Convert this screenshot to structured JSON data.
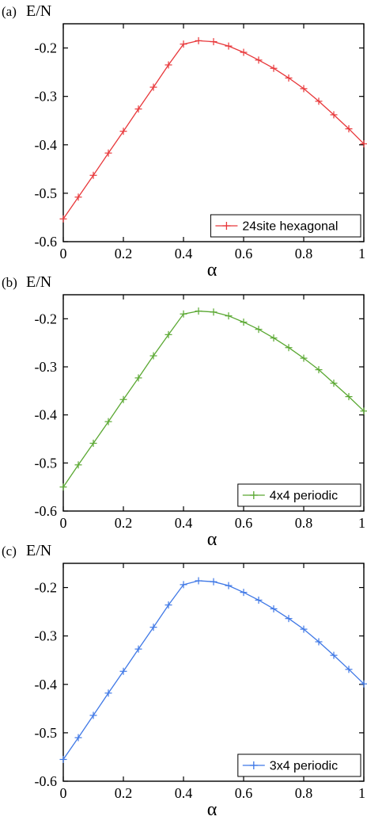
{
  "chart_data": [
    {
      "type": "line",
      "panel_label": "(a)",
      "ylabel": "E/N",
      "xlabel": "α",
      "xlim": [
        0,
        1
      ],
      "ylim": [
        -0.6,
        -0.15
      ],
      "xticks": [
        "0",
        "0.2",
        "0.4",
        "0.6",
        "0.8",
        "1"
      ],
      "yticks": [
        "-0.6",
        "-0.5",
        "-0.4",
        "-0.3",
        "-0.2"
      ],
      "legend_position": "bottom-right",
      "series": [
        {
          "name": "24site hexagonal",
          "color": "#e8373a",
          "marker": "plus",
          "x": [
            0,
            0.05,
            0.1,
            0.15,
            0.2,
            0.25,
            0.3,
            0.35,
            0.4,
            0.45,
            0.5,
            0.55,
            0.6,
            0.65,
            0.7,
            0.75,
            0.8,
            0.85,
            0.9,
            0.95,
            1.0
          ],
          "y": [
            -0.553,
            -0.508,
            -0.463,
            -0.417,
            -0.372,
            -0.326,
            -0.281,
            -0.235,
            -0.192,
            -0.185,
            -0.187,
            -0.196,
            -0.209,
            -0.225,
            -0.242,
            -0.262,
            -0.284,
            -0.31,
            -0.338,
            -0.367,
            -0.398
          ]
        }
      ]
    },
    {
      "type": "line",
      "panel_label": "(b)",
      "ylabel": "E/N",
      "xlabel": "α",
      "xlim": [
        0,
        1
      ],
      "ylim": [
        -0.6,
        -0.15
      ],
      "xticks": [
        "0",
        "0.2",
        "0.4",
        "0.6",
        "0.8",
        "1"
      ],
      "yticks": [
        "-0.6",
        "-0.5",
        "-0.4",
        "-0.3",
        "-0.2"
      ],
      "legend_position": "bottom-right",
      "series": [
        {
          "name": "4x4 periodic",
          "color": "#5aa832",
          "marker": "plus",
          "x": [
            0,
            0.05,
            0.1,
            0.15,
            0.2,
            0.25,
            0.3,
            0.35,
            0.4,
            0.45,
            0.5,
            0.55,
            0.6,
            0.65,
            0.7,
            0.75,
            0.8,
            0.85,
            0.9,
            0.95,
            1.0
          ],
          "y": [
            -0.55,
            -0.504,
            -0.459,
            -0.414,
            -0.368,
            -0.323,
            -0.277,
            -0.233,
            -0.19,
            -0.184,
            -0.186,
            -0.194,
            -0.207,
            -0.222,
            -0.24,
            -0.26,
            -0.282,
            -0.306,
            -0.334,
            -0.362,
            -0.392
          ]
        }
      ]
    },
    {
      "type": "line",
      "panel_label": "(c)",
      "ylabel": "E/N",
      "xlabel": "α",
      "xlim": [
        0,
        1
      ],
      "ylim": [
        -0.6,
        -0.15
      ],
      "xticks": [
        "0",
        "0.2",
        "0.4",
        "0.6",
        "0.8",
        "1"
      ],
      "yticks": [
        "-0.6",
        "-0.5",
        "-0.4",
        "-0.3",
        "-0.2"
      ],
      "legend_position": "bottom-right",
      "series": [
        {
          "name": "3x4 periodic",
          "color": "#3f78e6",
          "marker": "plus",
          "x": [
            0,
            0.05,
            0.1,
            0.15,
            0.2,
            0.25,
            0.3,
            0.35,
            0.4,
            0.45,
            0.5,
            0.55,
            0.6,
            0.65,
            0.7,
            0.75,
            0.8,
            0.85,
            0.9,
            0.95,
            1.0
          ],
          "y": [
            -0.555,
            -0.51,
            -0.464,
            -0.418,
            -0.373,
            -0.327,
            -0.282,
            -0.236,
            -0.194,
            -0.186,
            -0.188,
            -0.196,
            -0.21,
            -0.226,
            -0.244,
            -0.264,
            -0.286,
            -0.312,
            -0.34,
            -0.369,
            -0.399
          ]
        }
      ]
    }
  ]
}
